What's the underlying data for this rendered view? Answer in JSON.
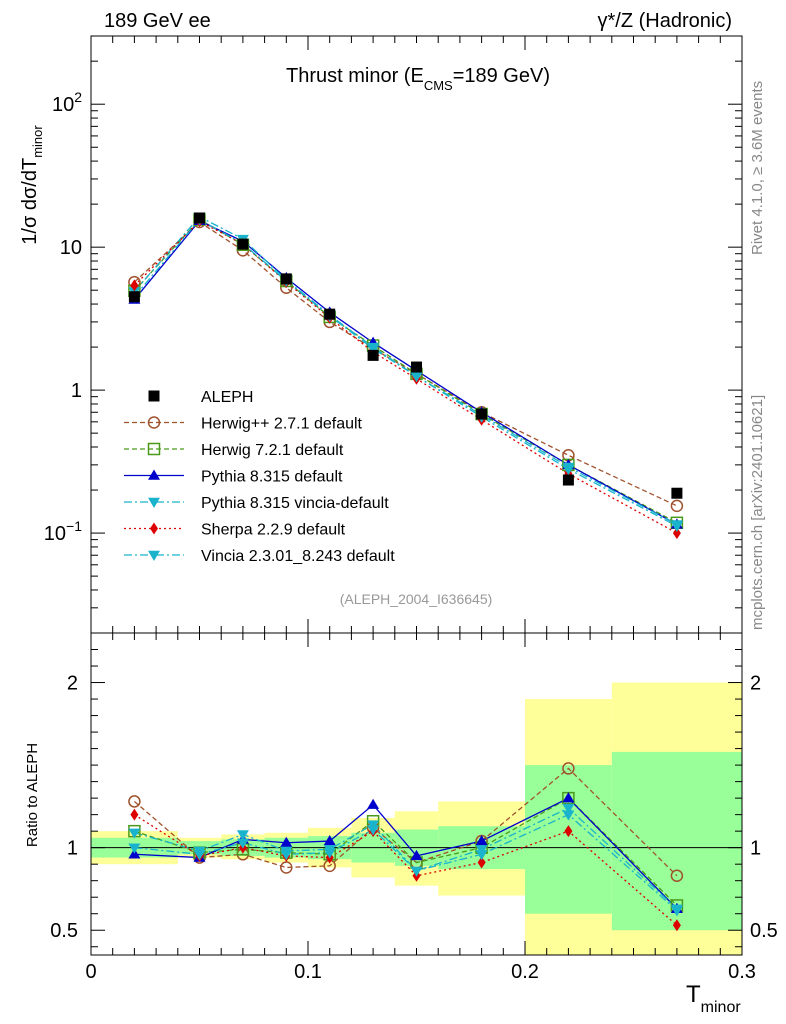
{
  "header": {
    "left_text": "189 GeV ee",
    "right_text": "γ*/Z (Hadronic)"
  },
  "side_labels": {
    "rivet": "Rivet 4.1.0, ≥ 3.6M events",
    "mcplots": "mcplots.cern.ch [arXiv:2401.10621]"
  },
  "chart_data": {
    "type": "scatter",
    "title": "Thrust minor (E_CMS=189 GeV)",
    "title_parts": {
      "main": "Thrust minor (E",
      "sub": "CMS",
      "tail": "=189 GeV)"
    },
    "analysis_tag": "(ALEPH_2004_I636645)",
    "xlabel": "T_minor",
    "xlabel_parts": {
      "main": "T",
      "sub": "minor"
    },
    "ylabel": "1/σ dσ/dT_minor",
    "ylabel_parts": {
      "main": "1/σ  dσ/dT",
      "sub": "minor"
    },
    "ratio_ylabel": "Ratio to ALEPH",
    "xlim": [
      0,
      0.3
    ],
    "ylim": [
      0.02,
      300
    ],
    "yscale": "log",
    "ratio_ylim": [
      0.35,
      2.3
    ],
    "x_ticks": [
      {
        "value": 0,
        "label": "0"
      },
      {
        "value": 0.1,
        "label": "0.1"
      },
      {
        "value": 0.2,
        "label": "0.2"
      },
      {
        "value": 0.3,
        "label": "0.3"
      }
    ],
    "y_ticks": [
      {
        "value": 0.1,
        "label": "10",
        "exp": "−1"
      },
      {
        "value": 1,
        "label": "1",
        "exp": ""
      },
      {
        "value": 10,
        "label": "10",
        "exp": ""
      },
      {
        "value": 100,
        "label": "10",
        "exp": "2"
      }
    ],
    "ratio_ticks": [
      {
        "value": 0.5,
        "label": "0.5"
      },
      {
        "value": 1,
        "label": "1"
      },
      {
        "value": 2,
        "label": "2"
      }
    ],
    "x": [
      0.02,
      0.05,
      0.07,
      0.09,
      0.11,
      0.13,
      0.15,
      0.18,
      0.22,
      0.27
    ],
    "bin_edges": [
      0,
      0.04,
      0.06,
      0.08,
      0.1,
      0.12,
      0.14,
      0.16,
      0.2,
      0.24,
      0.3
    ],
    "data": {
      "name": "ALEPH",
      "values": [
        4.5,
        16.0,
        10.5,
        6.0,
        3.4,
        1.75,
        1.45,
        0.68,
        0.235,
        0.19
      ]
    },
    "band_green": [
      [
        0.94,
        1.06
      ],
      [
        0.96,
        1.04
      ],
      [
        0.95,
        1.05
      ],
      [
        0.94,
        1.06
      ],
      [
        0.93,
        1.07
      ],
      [
        0.91,
        1.09
      ],
      [
        0.89,
        1.11
      ],
      [
        0.87,
        1.13
      ],
      [
        0.6,
        1.5
      ],
      [
        0.5,
        1.58
      ]
    ],
    "band_yellow": [
      [
        0.9,
        1.1
      ],
      [
        0.94,
        1.06
      ],
      [
        0.93,
        1.08
      ],
      [
        0.91,
        1.09
      ],
      [
        0.88,
        1.12
      ],
      [
        0.82,
        1.18
      ],
      [
        0.77,
        1.22
      ],
      [
        0.71,
        1.28
      ],
      [
        0.35,
        1.9
      ],
      [
        0.35,
        2.0
      ]
    ],
    "series": [
      {
        "name": "Herwig++ 2.7.1 default",
        "color": "#a0522d",
        "dash": "5,3",
        "marker": "circle-open",
        "values": [
          5.7,
          15.0,
          9.5,
          5.2,
          3.0,
          1.95,
          1.3,
          0.7,
          0.35,
          0.155
        ],
        "ratio": [
          1.28,
          0.94,
          0.96,
          0.88,
          0.89,
          1.12,
          0.91,
          1.04,
          1.48,
          0.83
        ]
      },
      {
        "name": "Herwig 7.2.1 default",
        "color": "#4a9a1a",
        "dash": "5,3",
        "marker": "square-open",
        "values": [
          4.95,
          15.6,
          10.4,
          5.8,
          3.25,
          2.05,
          1.3,
          0.68,
          0.3,
          0.118
        ],
        "ratio": [
          1.1,
          0.97,
          0.99,
          0.97,
          0.96,
          1.16,
          0.91,
          1.0,
          1.3,
          0.65
        ]
      },
      {
        "name": "Pythia 8.315 default",
        "color": "#0000cc",
        "dash": "none",
        "marker": "triangle-up",
        "values": [
          4.3,
          15.3,
          11.0,
          6.1,
          3.5,
          2.15,
          1.37,
          0.7,
          0.3,
          0.115
        ],
        "ratio": [
          0.96,
          0.94,
          1.05,
          1.03,
          1.04,
          1.26,
          0.95,
          1.04,
          1.3,
          0.63
        ]
      },
      {
        "name": "Pythia 8.315 vincia-default",
        "color": "#1ab3cc",
        "dash": "8,3,2,3",
        "marker": "triangle-down",
        "values": [
          4.9,
          16.3,
          11.4,
          5.9,
          3.35,
          2.0,
          1.25,
          0.67,
          0.29,
          0.115
        ],
        "ratio": [
          1.09,
          0.98,
          1.08,
          0.98,
          0.99,
          1.14,
          0.86,
          0.99,
          1.24,
          0.63
        ]
      },
      {
        "name": "Sherpa 2.2.9 default",
        "color": "#dd0000",
        "dash": "2,3",
        "marker": "diamond",
        "values": [
          5.4,
          15.2,
          10.5,
          5.7,
          3.2,
          1.85,
          1.2,
          0.62,
          0.26,
          0.1
        ],
        "ratio": [
          1.2,
          0.95,
          1.0,
          0.95,
          0.94,
          1.1,
          0.83,
          0.91,
          1.1,
          0.53
        ]
      },
      {
        "name": "Vincia 2.3.01_8.243 default",
        "color": "#1ab3cc",
        "dash": "8,3,2,3",
        "marker": "triangle-down",
        "values": [
          4.5,
          15.6,
          10.6,
          5.8,
          3.3,
          1.95,
          1.25,
          0.65,
          0.28,
          0.112
        ],
        "ratio": [
          1.0,
          0.96,
          1.03,
          0.96,
          0.97,
          1.11,
          0.86,
          0.96,
          1.2,
          0.62
        ]
      }
    ]
  }
}
